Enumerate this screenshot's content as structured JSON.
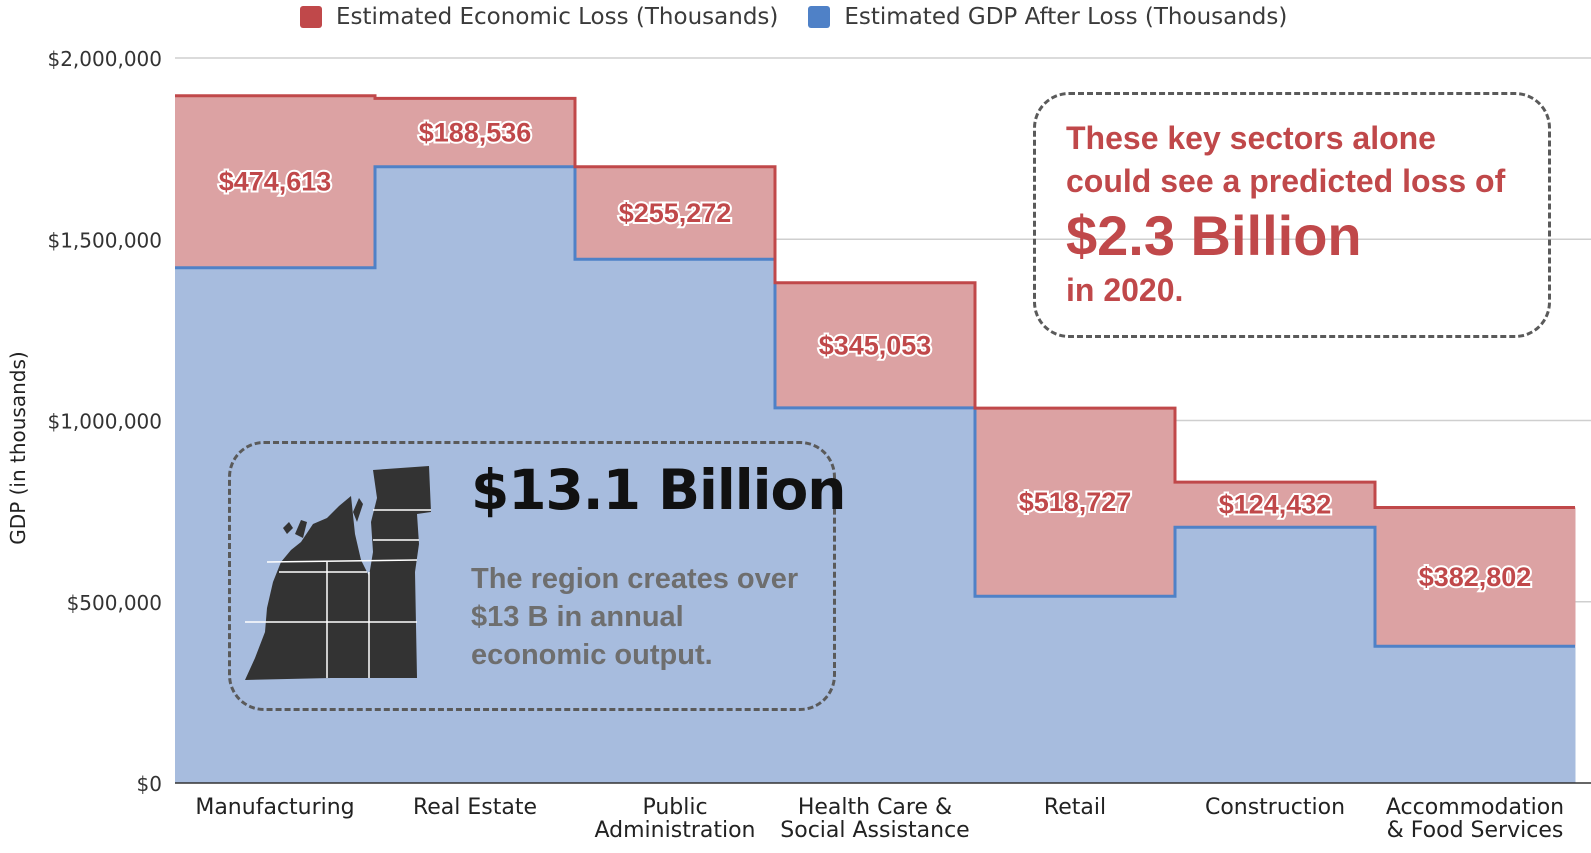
{
  "chart_data": {
    "type": "area",
    "step": true,
    "stacked": true,
    "categories": [
      "Manufacturing",
      "Real Estate",
      "Public Administration",
      "Health Care & Social Assistance",
      "Retail",
      "Construction",
      "Accommodation & Food Services"
    ],
    "category_label_lines": [
      [
        "Manufacturing"
      ],
      [
        "Real Estate"
      ],
      [
        "Public",
        "Administration"
      ],
      [
        "Health Care &",
        "Social Assistance"
      ],
      [
        "Retail"
      ],
      [
        "Construction"
      ],
      [
        "Accommodation",
        "& Food Services"
      ]
    ],
    "series": [
      {
        "name": "Estimated GDP After Loss (Thousands)",
        "color": "#4f81c7",
        "fill": "#a7bcde",
        "values": [
          1421387,
          1700000,
          1444728,
          1034947,
          515273,
          705568,
          377198
        ]
      },
      {
        "name": "Estimated Economic Loss (Thousands)",
        "color": "#c0484a",
        "fill": "#dca2a3",
        "values": [
          474613,
          188536,
          255272,
          345053,
          518727,
          124432,
          382802
        ]
      }
    ],
    "data_labels": [
      "$474,613",
      "$188,536",
      "$255,272",
      "$345,053",
      "$518,727",
      "$124,432",
      "$382,802"
    ],
    "ylabel": "GDP (in thousands)",
    "ylim": [
      0,
      2000000
    ],
    "yticks": [
      0,
      500000,
      1000000,
      1500000,
      2000000
    ],
    "ytick_labels": [
      "$0",
      "$500,000",
      "$1,000,000",
      "$1,500,000",
      "$2,000,000"
    ],
    "grid": true,
    "legend_position": "top"
  },
  "legend": [
    {
      "label": "Estimated Economic Loss (Thousands)",
      "color": "#c0484a"
    },
    {
      "label": "Estimated GDP After Loss (Thousands)",
      "color": "#4f81c7"
    }
  ],
  "callout_loss": {
    "line1": "These key sectors alone",
    "line2": "could see a predicted loss of",
    "big": "$2.3 Billion",
    "line3": "in 2020."
  },
  "callout_gdp": {
    "big": "$13.1 Billion",
    "desc": "The region creates over $13 B in annual economic output.",
    "map_icon": "region-map-icon"
  }
}
